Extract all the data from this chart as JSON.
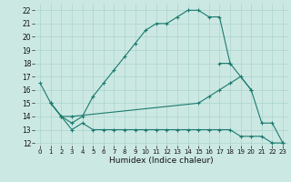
{
  "xlabel": "Humidex (Indice chaleur)",
  "bg_color": "#cce8e3",
  "line_color": "#1a7a6e",
  "grid_color": "#aad4ce",
  "xlim": [
    -0.5,
    23.5
  ],
  "ylim": [
    11.8,
    22.5
  ],
  "x_ticks": [
    0,
    1,
    2,
    3,
    4,
    5,
    6,
    7,
    8,
    9,
    10,
    11,
    12,
    13,
    14,
    15,
    16,
    17,
    18,
    19,
    20,
    21,
    22,
    23
  ],
  "y_ticks": [
    12,
    13,
    14,
    15,
    16,
    17,
    18,
    19,
    20,
    21,
    22
  ],
  "segments": [
    {
      "points": [
        [
          0,
          16.5
        ],
        [
          1,
          15.0
        ],
        [
          2,
          14.0
        ],
        [
          3,
          13.5
        ],
        [
          4,
          14.0
        ],
        [
          5,
          15.5
        ],
        [
          6,
          16.5
        ],
        [
          7,
          17.5
        ],
        [
          8,
          18.5
        ],
        [
          9,
          19.5
        ],
        [
          10,
          20.5
        ],
        [
          11,
          21.0
        ],
        [
          12,
          21.0
        ],
        [
          13,
          21.5
        ],
        [
          14,
          22.0
        ],
        [
          15,
          22.0
        ],
        [
          16,
          21.5
        ],
        [
          17,
          21.5
        ],
        [
          18,
          18.0
        ]
      ]
    },
    {
      "points": [
        [
          17,
          18.0
        ],
        [
          18,
          18.0
        ],
        [
          20,
          16.0
        ],
        [
          21,
          13.5
        ],
        [
          22,
          13.5
        ],
        [
          23,
          12.0
        ]
      ]
    },
    {
      "points": [
        [
          1,
          15.0
        ],
        [
          2,
          14.0
        ],
        [
          3,
          14.0
        ],
        [
          15,
          15.0
        ],
        [
          16,
          15.5
        ],
        [
          17,
          16.0
        ],
        [
          18,
          16.5
        ],
        [
          19,
          17.0
        ],
        [
          20,
          16.0
        ]
      ]
    },
    {
      "points": [
        [
          1,
          15.0
        ],
        [
          2,
          14.0
        ],
        [
          3,
          13.0
        ],
        [
          4,
          13.5
        ],
        [
          5,
          13.0
        ],
        [
          6,
          13.0
        ],
        [
          7,
          13.0
        ],
        [
          8,
          13.0
        ],
        [
          9,
          13.0
        ],
        [
          10,
          13.0
        ],
        [
          11,
          13.0
        ],
        [
          12,
          13.0
        ],
        [
          13,
          13.0
        ],
        [
          14,
          13.0
        ],
        [
          15,
          13.0
        ],
        [
          16,
          13.0
        ],
        [
          17,
          13.0
        ],
        [
          18,
          13.0
        ],
        [
          19,
          12.5
        ],
        [
          20,
          12.5
        ],
        [
          21,
          12.5
        ],
        [
          22,
          12.0
        ],
        [
          23,
          12.0
        ]
      ]
    }
  ]
}
